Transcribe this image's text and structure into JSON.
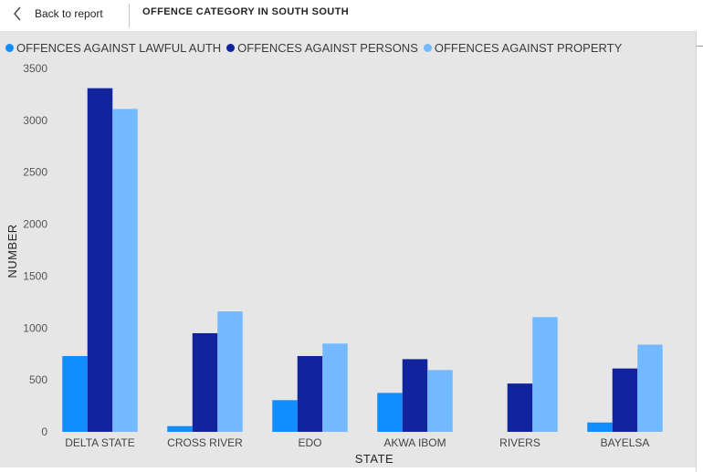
{
  "header": {
    "back_label": "Back to report",
    "title": "OFFENCE CATEGORY IN SOUTH SOUTH"
  },
  "chart_data": {
    "type": "bar",
    "categories": [
      "DELTA STATE",
      "CROSS RIVER",
      "EDO",
      "AKWA IBOM",
      "RIVERS",
      "BAYELSA"
    ],
    "series": [
      {
        "name": "OFFENCES AGAINST LAWFUL AUTH",
        "color": "#118dff",
        "values": [
          730,
          55,
          305,
          375,
          0,
          90
        ]
      },
      {
        "name": "OFFENCES AGAINST PERSONS",
        "color": "#12239e",
        "values": [
          3310,
          950,
          730,
          700,
          465,
          610
        ]
      },
      {
        "name": "OFFENCES AGAINST PROPERTY",
        "color": "#73b9ff",
        "values": [
          3110,
          1160,
          850,
          595,
          1105,
          840
        ]
      }
    ],
    "xlabel": "STATE",
    "ylabel": "NUMBER",
    "ylim": [
      0,
      3500
    ],
    "yticks": [
      0,
      500,
      1000,
      1500,
      2000,
      2500,
      3000,
      3500
    ],
    "grid": false,
    "legend": "top-left"
  }
}
